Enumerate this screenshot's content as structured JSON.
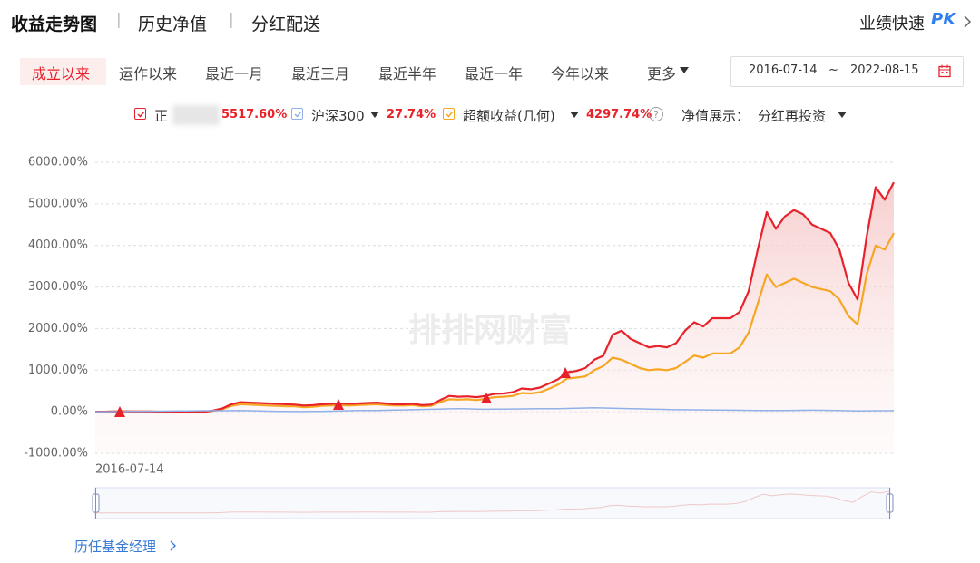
{
  "header": {
    "tabs": [
      "收益走势图",
      "历史净值",
      "分红配送"
    ],
    "compare": "业绩快速",
    "compare_badge": "PK"
  },
  "period_tabs": [
    "成立以来",
    "运作以来",
    "最近一月",
    "最近三月",
    "最近半年",
    "最近一年",
    "今年以来",
    "更多"
  ],
  "date_range": {
    "start": "2016-07-14",
    "separator": "~",
    "end": "2022-08-15"
  },
  "display": {
    "label": "净值展示：",
    "option": "分红再投资"
  },
  "chart_data": {
    "type": "line",
    "categories": [
      "2016-07-14",
      null,
      null,
      null,
      null,
      null,
      null,
      null,
      null,
      null,
      null,
      null,
      null,
      null,
      null,
      null,
      null,
      null,
      null,
      null,
      null,
      null,
      null,
      null,
      null,
      null,
      null,
      null,
      null,
      null,
      null,
      null,
      null,
      null,
      null,
      null,
      null,
      null,
      null,
      null,
      null,
      null,
      null,
      null,
      null,
      null,
      null,
      null,
      null,
      null,
      null,
      null,
      null,
      null,
      null,
      null,
      null,
      null,
      null,
      null,
      null,
      null,
      null,
      null,
      null,
      null,
      null,
      null,
      null,
      null,
      null,
      null,
      null,
      null,
      null,
      null,
      null,
      null,
      null,
      null,
      null,
      null,
      null,
      null,
      null,
      null,
      null,
      null,
      "2022-08-15"
    ],
    "series": [
      {
        "name": "正",
        "color": "#e8222a",
        "return_label": "5517.60%",
        "values": [
          0,
          0,
          5,
          10,
          5,
          5,
          5,
          0,
          0,
          0,
          0,
          0,
          0,
          30,
          80,
          180,
          230,
          220,
          210,
          200,
          190,
          180,
          170,
          150,
          160,
          180,
          190,
          200,
          190,
          200,
          210,
          220,
          200,
          180,
          180,
          190,
          160,
          170,
          280,
          380,
          360,
          370,
          350,
          380,
          430,
          440,
          470,
          560,
          540,
          580,
          680,
          780,
          950,
          980,
          1050,
          1250,
          1350,
          1850,
          1950,
          1750,
          1650,
          1550,
          1580,
          1550,
          1650,
          1950,
          2150,
          2050,
          2250,
          2250,
          2250,
          2400,
          2900,
          3900,
          4800,
          4400,
          4700,
          4850,
          4750,
          4500,
          4400,
          4300,
          3900,
          3100,
          2700,
          4200,
          5400,
          5100,
          5517.6
        ]
      },
      {
        "name": "沪深300",
        "color": "#8fb1e8",
        "return_label": "27.74%",
        "values": [
          0,
          2,
          4,
          6,
          8,
          10,
          12,
          14,
          16,
          18,
          20,
          22,
          24,
          25,
          26,
          28,
          30,
          25,
          20,
          15,
          10,
          8,
          5,
          5,
          8,
          10,
          15,
          20,
          25,
          30,
          30,
          32,
          35,
          40,
          45,
          50,
          55,
          60,
          65,
          70,
          75,
          70,
          65,
          60,
          62,
          64,
          66,
          68,
          70,
          72,
          74,
          76,
          80,
          85,
          90,
          95,
          90,
          85,
          80,
          75,
          70,
          65,
          60,
          55,
          50,
          48,
          46,
          44,
          42,
          40,
          38,
          36,
          34,
          32,
          30,
          30,
          32,
          34,
          36,
          38,
          36,
          34,
          30,
          25,
          20,
          22,
          24,
          26,
          27.74
        ]
      },
      {
        "name": "超额收益(几何)",
        "color": "#f5a623",
        "return_label": "4297.74%",
        "values": [
          0,
          0,
          5,
          10,
          5,
          5,
          5,
          0,
          0,
          0,
          0,
          0,
          0,
          20,
          60,
          140,
          180,
          170,
          160,
          150,
          140,
          130,
          130,
          110,
          120,
          140,
          150,
          160,
          150,
          160,
          170,
          180,
          160,
          150,
          150,
          160,
          130,
          140,
          230,
          300,
          290,
          300,
          280,
          310,
          350,
          360,
          380,
          450,
          440,
          470,
          550,
          650,
          800,
          820,
          850,
          1000,
          1100,
          1300,
          1250,
          1150,
          1050,
          1000,
          1020,
          1000,
          1050,
          1200,
          1350,
          1300,
          1400,
          1400,
          1400,
          1550,
          1900,
          2600,
          3300,
          3000,
          3100,
          3200,
          3100,
          3000,
          2950,
          2900,
          2700,
          2300,
          2100,
          3300,
          4000,
          3900,
          4297.74
        ]
      }
    ],
    "ylim": [
      -1000,
      6000
    ],
    "yticks": [
      {
        "value": -1000,
        "label": "-1000.00%"
      },
      {
        "value": 0,
        "label": "0.00%"
      },
      {
        "value": 1000,
        "label": "1000.00%"
      },
      {
        "value": 2000,
        "label": "2000.00%"
      },
      {
        "value": 3000,
        "label": "3000.00%"
      },
      {
        "value": 4000,
        "label": "4000.00%"
      },
      {
        "value": 5000,
        "label": "5000.00%"
      },
      {
        "value": 6000,
        "label": "6000.00%"
      }
    ],
    "grid": true,
    "watermark": "排排网财富"
  },
  "footer_link": "历任基金经理"
}
